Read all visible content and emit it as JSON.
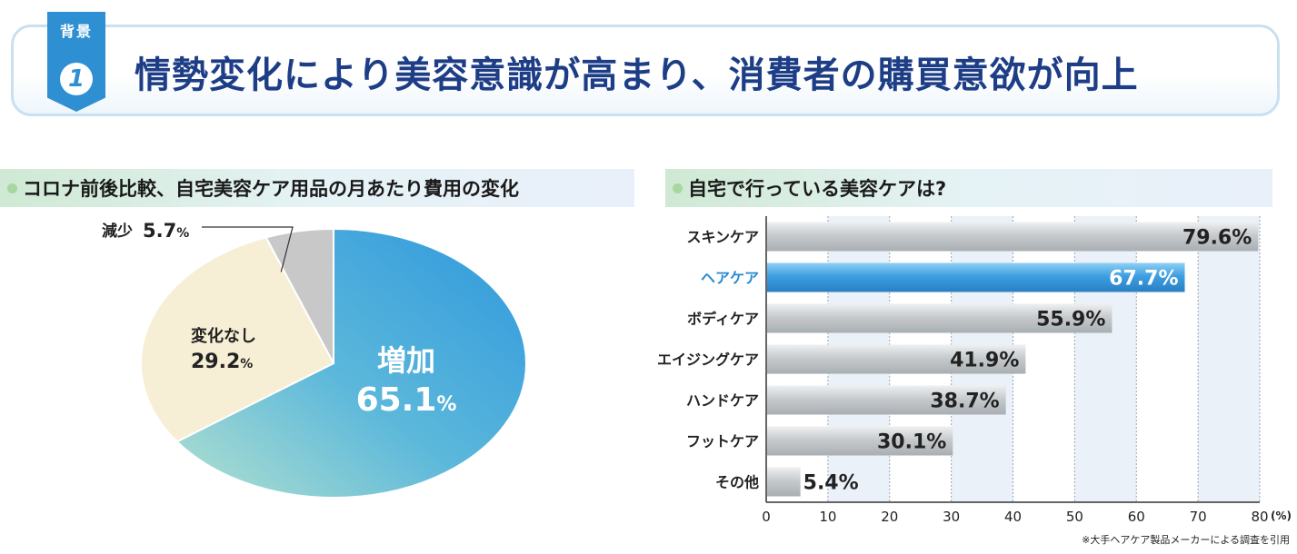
{
  "header": {
    "tag": "背景",
    "number": "1",
    "title": "情勢変化により美容意識が高まり、消費者の購買意欲が向上"
  },
  "left_section": {
    "title": "コロナ前後比較、自宅美容ケア用品の月あたり費用の変化"
  },
  "right_section": {
    "title": "自宅で行っている美容ケアは?"
  },
  "footnote": "※大手ヘアケア製品メーカーによる調査を引用",
  "colors": {
    "title_blue": "#1d3e86",
    "increase_blue": "#3aa3dc",
    "increase_teal": "#a6dcc9",
    "nochange_cream": "#f6efd5",
    "decrease_gray": "#c8c8c8",
    "bar_gray": "#c9cdd0",
    "bar_highlight": "#3d9fe0",
    "highlight_label": "#2a8ad0"
  },
  "chart_data": [
    {
      "type": "pie",
      "slices": [
        {
          "label": "増加",
          "value": 65.1,
          "value_text": "65.1",
          "unit": "%"
        },
        {
          "label": "変化なし",
          "value": 29.2,
          "value_text": "29.2",
          "unit": "%"
        },
        {
          "label": "減少",
          "value": 5.7,
          "value_text": "5.7",
          "unit": "%"
        }
      ],
      "start": "12 o'clock, clockwise"
    },
    {
      "type": "bar",
      "orientation": "horizontal",
      "categories": [
        "スキンケア",
        "ヘアケア",
        "ボディケア",
        "エイジングケア",
        "ハンドケア",
        "フットケア",
        "その他"
      ],
      "values": [
        79.6,
        67.7,
        55.9,
        41.9,
        38.7,
        30.1,
        5.4
      ],
      "value_labels": [
        "79.6%",
        "67.7%",
        "55.9%",
        "41.9%",
        "38.7%",
        "30.1%",
        "5.4%"
      ],
      "highlight": "ヘアケア",
      "xlim": [
        0,
        80
      ],
      "xticks": [
        "0",
        "10",
        "20",
        "30",
        "40",
        "50",
        "60",
        "70",
        "80"
      ],
      "xunit": "(%)",
      "grid": true
    }
  ]
}
